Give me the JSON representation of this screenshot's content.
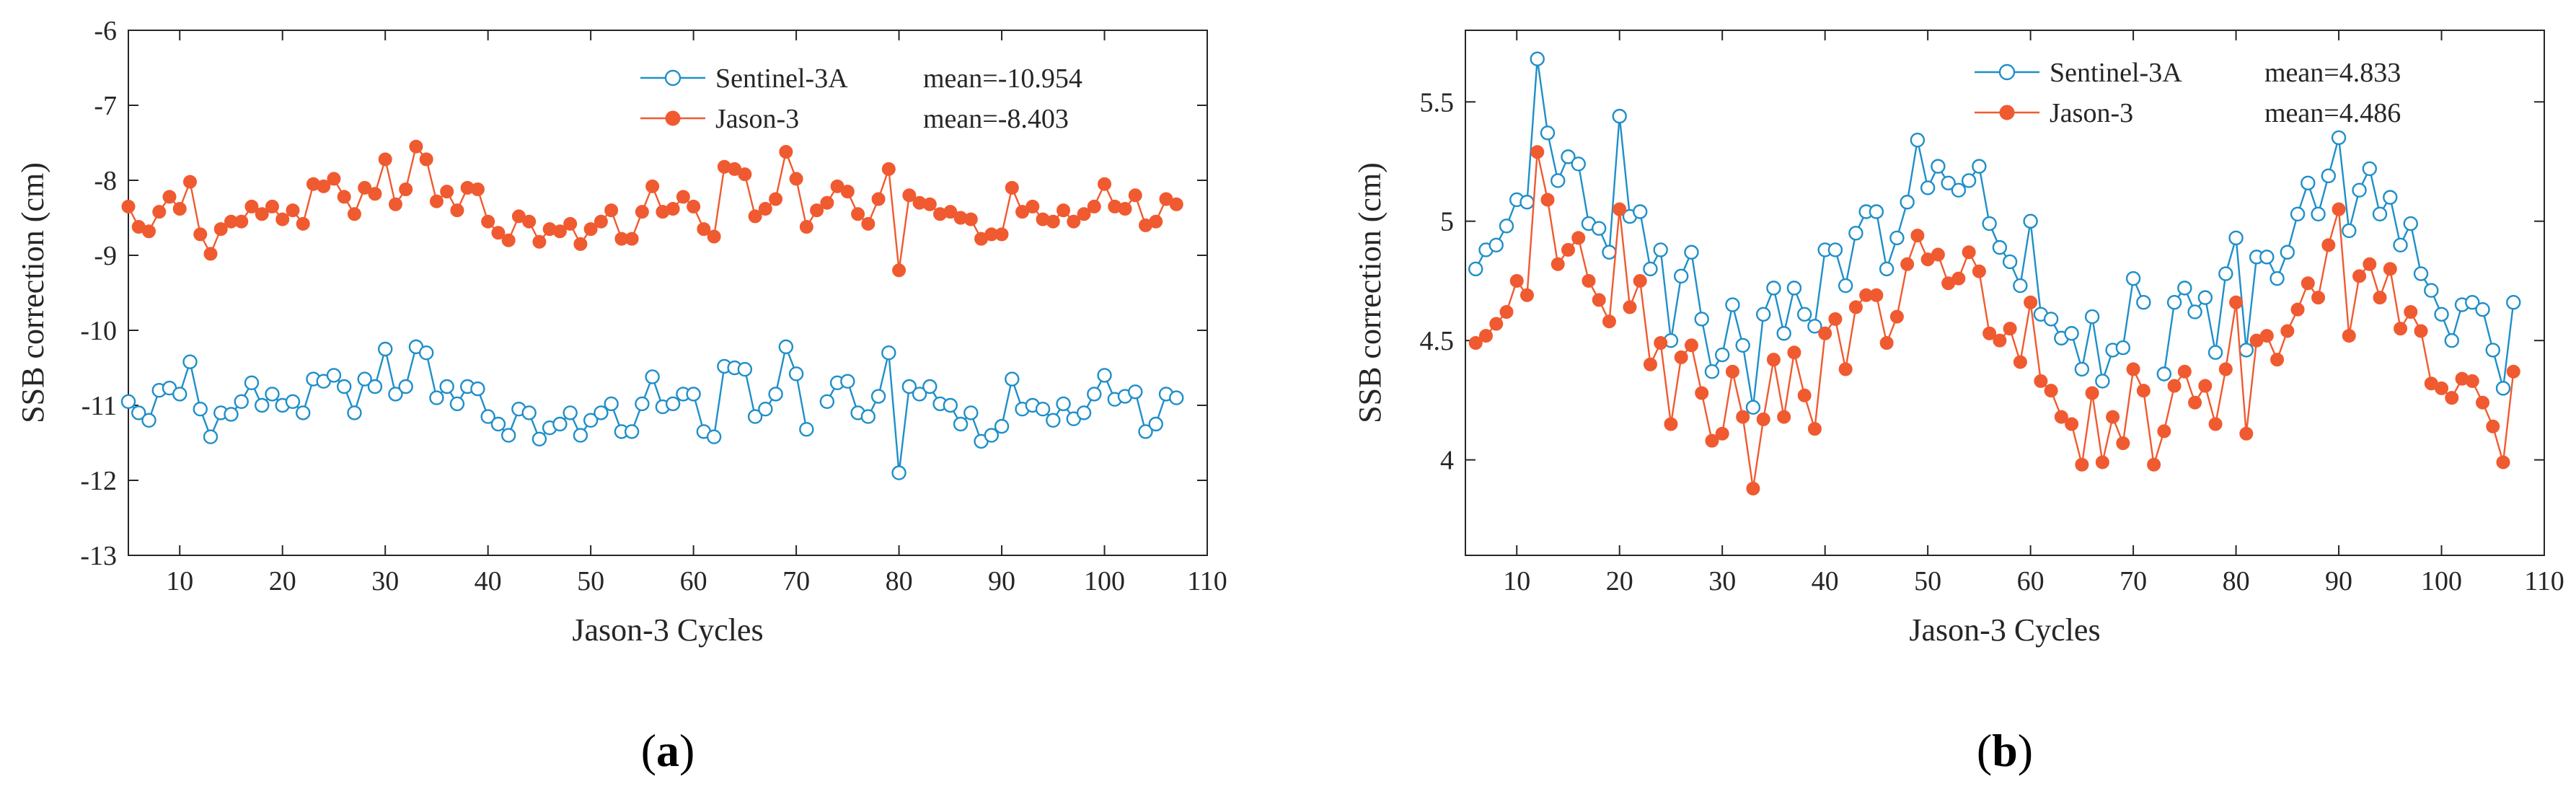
{
  "chart_data": [
    {
      "type": "line",
      "panel_label": "(a)",
      "xlabel": "Jason-3 Cycles",
      "ylabel": "SSB correction (cm)",
      "xlim": [
        5,
        110
      ],
      "ylim": [
        -13,
        -6
      ],
      "xticks": [
        10,
        20,
        30,
        40,
        50,
        60,
        70,
        80,
        90,
        100,
        110
      ],
      "yticks": [
        -13,
        -12,
        -11,
        -10,
        -9,
        -8,
        -7,
        -6
      ],
      "series": [
        {
          "name": "Sentinel-3A",
          "mean_label": "mean=-10.954",
          "marker": "open-circle",
          "color": "#1f8fc9",
          "x": [
            5,
            6,
            7,
            8,
            9,
            10,
            11,
            12,
            13,
            14,
            15,
            16,
            17,
            18,
            19,
            20,
            21,
            22,
            23,
            24,
            25,
            26,
            27,
            28,
            29,
            30,
            31,
            32,
            33,
            34,
            35,
            36,
            37,
            38,
            39,
            40,
            41,
            42,
            43,
            44,
            45,
            46,
            47,
            48,
            49,
            50,
            51,
            52,
            53,
            54,
            55,
            56,
            57,
            58,
            59,
            60,
            61,
            62,
            63,
            64,
            65,
            66,
            67,
            68,
            69,
            70,
            71,
            73,
            74,
            75,
            76,
            77,
            78,
            79,
            80,
            81,
            82,
            83,
            84,
            85,
            86,
            87,
            88,
            89,
            90,
            91,
            92,
            93,
            94,
            95,
            96,
            97,
            98,
            99,
            100,
            101,
            102,
            103,
            104,
            105,
            106,
            107
          ],
          "values": [
            -10.95,
            -11.1,
            -11.2,
            -10.8,
            -10.77,
            -10.85,
            -10.42,
            -11.05,
            -11.42,
            -11.1,
            -11.12,
            -10.95,
            -10.7,
            -11.0,
            -10.85,
            -11.0,
            -10.95,
            -11.1,
            -10.65,
            -10.68,
            -10.6,
            -10.75,
            -11.1,
            -10.65,
            -10.75,
            -10.25,
            -10.85,
            -10.75,
            -10.22,
            -10.3,
            -10.9,
            -10.75,
            -10.98,
            -10.75,
            -10.78,
            -11.15,
            -11.25,
            -11.4,
            -11.05,
            -11.1,
            -11.45,
            -11.3,
            -11.25,
            -11.1,
            -11.4,
            -11.2,
            -11.1,
            -10.98,
            -11.35,
            -11.35,
            -10.98,
            -10.62,
            -11.02,
            -10.98,
            -10.85,
            -10.85,
            -11.35,
            -11.42,
            -10.48,
            -10.5,
            -10.52,
            -11.15,
            -11.05,
            -10.85,
            -10.22,
            -10.58,
            -11.32,
            -10.95,
            -10.7,
            -10.68,
            -11.1,
            -11.15,
            -10.88,
            -10.3,
            -11.9,
            -10.75,
            -10.85,
            -10.75,
            -10.98,
            -11.0,
            -11.25,
            -11.1,
            -11.48,
            -11.4,
            -11.28,
            -10.65,
            -11.05,
            -11.0,
            -11.05,
            -11.2,
            -10.98,
            -11.18,
            -11.1,
            -10.85,
            -10.6,
            -10.92,
            -10.88,
            -10.82,
            -11.35,
            -11.25,
            -10.85,
            -10.9
          ]
        },
        {
          "name": "Jason-3",
          "mean_label": "mean=-8.403",
          "marker": "filled-circle",
          "color": "#f05a30",
          "x": [
            5,
            6,
            7,
            8,
            9,
            10,
            11,
            12,
            13,
            14,
            15,
            16,
            17,
            18,
            19,
            20,
            21,
            22,
            23,
            24,
            25,
            26,
            27,
            28,
            29,
            30,
            31,
            32,
            33,
            34,
            35,
            36,
            37,
            38,
            39,
            40,
            41,
            42,
            43,
            44,
            45,
            46,
            47,
            48,
            49,
            50,
            51,
            52,
            53,
            54,
            55,
            56,
            57,
            58,
            59,
            60,
            61,
            62,
            63,
            64,
            65,
            66,
            67,
            68,
            69,
            70,
            71,
            72,
            73,
            74,
            75,
            76,
            77,
            78,
            79,
            80,
            81,
            82,
            83,
            84,
            85,
            86,
            87,
            88,
            89,
            90,
            91,
            92,
            93,
            94,
            95,
            96,
            97,
            98,
            99,
            100,
            101,
            102,
            103,
            104,
            105,
            106,
            107
          ],
          "values": [
            -8.35,
            -8.62,
            -8.68,
            -8.42,
            -8.22,
            -8.38,
            -8.02,
            -8.72,
            -8.98,
            -8.65,
            -8.55,
            -8.55,
            -8.35,
            -8.45,
            -8.35,
            -8.52,
            -8.4,
            -8.58,
            -8.05,
            -8.08,
            -7.98,
            -8.22,
            -8.45,
            -8.1,
            -8.18,
            -7.72,
            -8.32,
            -8.12,
            -7.55,
            -7.72,
            -8.28,
            -8.15,
            -8.4,
            -8.1,
            -8.12,
            -8.55,
            -8.7,
            -8.8,
            -8.48,
            -8.55,
            -8.82,
            -8.65,
            -8.68,
            -8.58,
            -8.85,
            -8.65,
            -8.55,
            -8.4,
            -8.78,
            -8.78,
            -8.42,
            -8.08,
            -8.42,
            -8.38,
            -8.22,
            -8.35,
            -8.65,
            -8.75,
            -7.82,
            -7.85,
            -7.92,
            -8.48,
            -8.38,
            -8.25,
            -7.62,
            -7.98,
            -8.62,
            -8.4,
            -8.3,
            -8.08,
            -8.15,
            -8.45,
            -8.58,
            -8.25,
            -7.85,
            -9.2,
            -8.2,
            -8.3,
            -8.32,
            -8.45,
            -8.42,
            -8.5,
            -8.52,
            -8.78,
            -8.72,
            -8.72,
            -8.1,
            -8.42,
            -8.35,
            -8.52,
            -8.55,
            -8.4,
            -8.55,
            -8.45,
            -8.35,
            -8.05,
            -8.35,
            -8.38,
            -8.2,
            -8.6,
            -8.55,
            -8.25,
            -8.32
          ]
        }
      ]
    },
    {
      "type": "line",
      "panel_label": "(b)",
      "xlabel": "Jason-3 Cycles",
      "ylabel": "SSB correction (cm)",
      "xlim": [
        5,
        110
      ],
      "ylim": [
        3.6,
        5.8
      ],
      "xticks": [
        10,
        20,
        30,
        40,
        50,
        60,
        70,
        80,
        90,
        100,
        110
      ],
      "yticks": [
        4,
        4.5,
        5,
        5.5
      ],
      "series": [
        {
          "name": "Sentinel-3A",
          "mean_label": "mean=4.833",
          "marker": "open-circle",
          "color": "#1f8fc9",
          "x": [
            6,
            7,
            8,
            9,
            10,
            11,
            12,
            13,
            14,
            15,
            16,
            17,
            18,
            19,
            20,
            21,
            22,
            23,
            24,
            25,
            26,
            27,
            28,
            29,
            30,
            31,
            32,
            33,
            34,
            35,
            36,
            37,
            38,
            39,
            40,
            41,
            42,
            43,
            44,
            45,
            46,
            47,
            48,
            49,
            50,
            51,
            52,
            53,
            54,
            55,
            56,
            57,
            58,
            59,
            60,
            61,
            62,
            63,
            64,
            65,
            66,
            67,
            68,
            69,
            70,
            71,
            73,
            74,
            75,
            76,
            77,
            78,
            79,
            80,
            81,
            82,
            83,
            84,
            85,
            86,
            87,
            88,
            89,
            90,
            91,
            92,
            93,
            94,
            95,
            96,
            97,
            98,
            99,
            100,
            101,
            102,
            103,
            104,
            105,
            106,
            107
          ],
          "values": [
            4.8,
            4.88,
            4.9,
            4.98,
            5.09,
            5.08,
            5.68,
            5.37,
            5.17,
            5.27,
            5.24,
            4.99,
            4.97,
            4.87,
            5.44,
            5.02,
            5.04,
            4.8,
            4.88,
            4.5,
            4.77,
            4.87,
            4.59,
            4.37,
            4.44,
            4.65,
            4.48,
            4.22,
            4.61,
            4.72,
            4.53,
            4.72,
            4.61,
            4.56,
            4.88,
            4.88,
            4.73,
            4.95,
            5.04,
            5.04,
            4.8,
            4.93,
            5.08,
            5.34,
            5.14,
            5.23,
            5.16,
            5.13,
            5.17,
            5.23,
            4.99,
            4.89,
            4.83,
            4.73,
            5.0,
            4.61,
            4.59,
            4.51,
            4.53,
            4.38,
            4.6,
            4.33,
            4.46,
            4.47,
            4.76,
            4.66,
            4.36,
            4.66,
            4.72,
            4.62,
            4.68,
            4.45,
            4.78,
            4.93,
            4.46,
            4.85,
            4.85,
            4.76,
            4.87,
            5.03,
            5.16,
            5.03,
            5.19,
            5.35,
            4.96,
            5.13,
            5.22,
            5.03,
            5.1,
            4.9,
            4.99,
            4.78,
            4.71,
            4.61,
            4.5,
            4.65,
            4.66,
            4.63,
            4.46,
            4.3,
            4.66
          ]
        },
        {
          "name": "Jason-3",
          "mean_label": "mean=4.486",
          "marker": "filled-circle",
          "color": "#f05a30",
          "x": [
            6,
            7,
            8,
            9,
            10,
            11,
            12,
            13,
            14,
            15,
            16,
            17,
            18,
            19,
            20,
            21,
            22,
            23,
            24,
            25,
            26,
            27,
            28,
            29,
            30,
            31,
            32,
            33,
            34,
            35,
            36,
            37,
            38,
            39,
            40,
            41,
            42,
            43,
            44,
            45,
            46,
            47,
            48,
            49,
            50,
            51,
            52,
            53,
            54,
            55,
            56,
            57,
            58,
            59,
            60,
            61,
            62,
            63,
            64,
            65,
            66,
            67,
            68,
            69,
            70,
            71,
            72,
            73,
            74,
            75,
            76,
            77,
            78,
            79,
            80,
            81,
            82,
            83,
            84,
            85,
            86,
            87,
            88,
            89,
            90,
            91,
            92,
            93,
            94,
            95,
            96,
            97,
            98,
            99,
            100,
            101,
            102,
            103,
            104,
            105,
            106,
            107
          ],
          "values": [
            4.49,
            4.52,
            4.57,
            4.62,
            4.75,
            4.69,
            5.29,
            5.09,
            4.82,
            4.88,
            4.93,
            4.75,
            4.67,
            4.58,
            5.05,
            4.64,
            4.75,
            4.4,
            4.49,
            4.15,
            4.43,
            4.48,
            4.28,
            4.08,
            4.11,
            4.37,
            4.18,
            3.88,
            4.17,
            4.42,
            4.18,
            4.45,
            4.27,
            4.13,
            4.53,
            4.59,
            4.38,
            4.64,
            4.69,
            4.69,
            4.49,
            4.6,
            4.82,
            4.94,
            4.84,
            4.86,
            4.74,
            4.76,
            4.87,
            4.79,
            4.53,
            4.5,
            4.55,
            4.41,
            4.66,
            4.33,
            4.29,
            4.18,
            4.15,
            3.98,
            4.28,
            3.99,
            4.18,
            4.07,
            4.38,
            4.29,
            3.98,
            4.12,
            4.31,
            4.37,
            4.24,
            4.31,
            4.15,
            4.38,
            4.66,
            4.11,
            4.5,
            4.52,
            4.42,
            4.54,
            4.63,
            4.74,
            4.68,
            4.9,
            5.05,
            4.52,
            4.77,
            4.82,
            4.68,
            4.8,
            4.55,
            4.62,
            4.54,
            4.32,
            4.3,
            4.26,
            4.34,
            4.33,
            4.24,
            4.14,
            3.99,
            4.37
          ]
        }
      ]
    }
  ]
}
